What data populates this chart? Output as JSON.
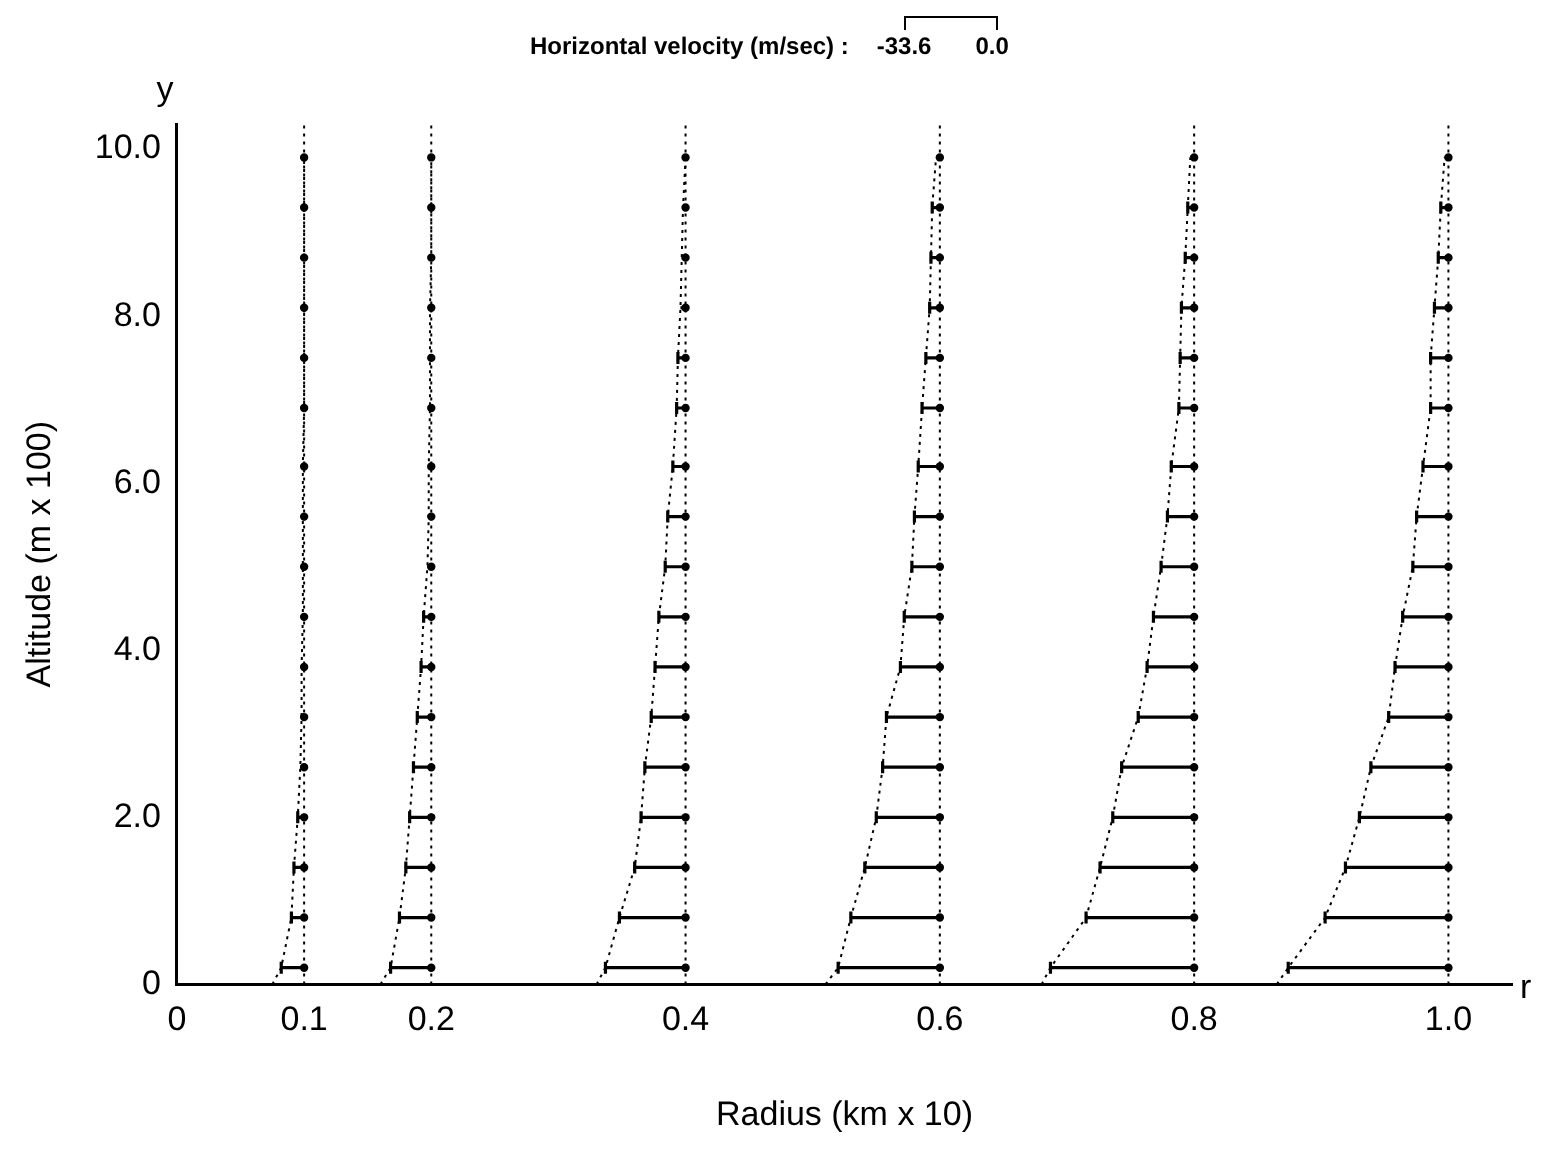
{
  "chart_data": {
    "type": "scatter",
    "xlabel": "Radius (km x 10)",
    "ylabel": "Altitude (m x 100)",
    "annotations": [
      "Horizontal velocity (m/sec) :",
      "-33.6",
      "0.0",
      "y",
      "r"
    ],
    "xlim": [
      0,
      1.05
    ],
    "ylim": [
      0,
      10.3
    ],
    "xticks": [
      0,
      0.1,
      0.2,
      0.4,
      0.6,
      0.8,
      {
        "value": 1,
        "label": "1.0"
      }
    ],
    "yticks": [
      0,
      {
        "value": 2,
        "label": "2.0"
      },
      {
        "value": 4,
        "label": "4.0"
      },
      {
        "value": 6,
        "label": "6.0"
      },
      {
        "value": 8,
        "label": "8.0"
      },
      {
        "value": 10,
        "label": "10.0"
      }
    ],
    "legend": false,
    "marker": "circle",
    "ref_lines": [
      {
        "axis": "x",
        "value": 0.1,
        "color": "#000000",
        "line_style": "dotted"
      },
      {
        "axis": "x",
        "value": 0.2,
        "color": "#000000",
        "line_style": "dotted"
      },
      {
        "axis": "x",
        "value": 0.4,
        "color": "#000000",
        "line_style": "dotted"
      },
      {
        "axis": "x",
        "value": 0.6,
        "color": "#000000",
        "line_style": "dotted"
      },
      {
        "axis": "x",
        "value": 0.8,
        "color": "#000000",
        "line_style": "dotted"
      },
      {
        "axis": "x",
        "value": 1.0,
        "color": "#000000",
        "line_style": "dotted"
      }
    ],
    "series": [
      {
        "type": "scatter",
        "color": "#000000",
        "x": [
          0.1,
          0.1,
          0.1,
          0.1,
          0.1,
          0.1,
          0.1,
          0.1,
          0.1,
          0.1,
          0.1,
          0.1,
          0.1,
          0.1,
          0.1,
          0.1,
          0.1
        ],
        "values": [
          0.2,
          0.8,
          1.4,
          2.0,
          2.6,
          3.2,
          3.8,
          4.4,
          5.0,
          5.6,
          6.2,
          6.9,
          7.5,
          8.1,
          8.7,
          9.3,
          9.9
        ],
        "xerrors": [
          [
            0.082,
            0.1
          ],
          [
            0.09,
            0.1
          ],
          [
            0.092,
            0.1
          ],
          [
            0.095,
            0.1
          ],
          [
            0.097,
            0.1
          ],
          null,
          null,
          null,
          null,
          null,
          null,
          null,
          null,
          null,
          null,
          null,
          null
        ]
      },
      {
        "type": "line",
        "color": "#000000",
        "marker": "none",
        "line_style": "dotted",
        "x": [
          0.075,
          0.082,
          0.09,
          0.092,
          0.095,
          0.097,
          0.098,
          0.098,
          0.099,
          0.099,
          0.099,
          0.099,
          0.1,
          0.1,
          0.1,
          0.1,
          0.1,
          0.1
        ],
        "values": [
          0,
          0.2,
          0.8,
          1.4,
          2.0,
          2.6,
          3.2,
          3.8,
          4.4,
          5.0,
          5.6,
          6.2,
          6.9,
          7.5,
          8.1,
          8.7,
          9.3,
          9.9
        ]
      },
      {
        "type": "scatter",
        "color": "#000000",
        "x": [
          0.2,
          0.2,
          0.2,
          0.2,
          0.2,
          0.2,
          0.2,
          0.2,
          0.2,
          0.2,
          0.2,
          0.2,
          0.2,
          0.2,
          0.2,
          0.2,
          0.2
        ],
        "values": [
          0.2,
          0.8,
          1.4,
          2.0,
          2.6,
          3.2,
          3.8,
          4.4,
          5.0,
          5.6,
          6.2,
          6.9,
          7.5,
          8.1,
          8.7,
          9.3,
          9.9
        ],
        "xerrors": [
          [
            0.168,
            0.2
          ],
          [
            0.175,
            0.2
          ],
          [
            0.18,
            0.2
          ],
          [
            0.183,
            0.2
          ],
          [
            0.186,
            0.2
          ],
          [
            0.189,
            0.2
          ],
          [
            0.192,
            0.2
          ],
          [
            0.194,
            0.2
          ],
          [
            0.197,
            0.2
          ],
          null,
          null,
          null,
          null,
          null,
          null,
          null,
          null
        ]
      },
      {
        "type": "line",
        "color": "#000000",
        "marker": "none",
        "line_style": "dotted",
        "x": [
          0.16,
          0.168,
          0.175,
          0.18,
          0.183,
          0.186,
          0.189,
          0.192,
          0.194,
          0.197,
          0.198,
          0.198,
          0.199,
          0.199,
          0.199,
          0.2,
          0.2,
          0.2
        ],
        "values": [
          0,
          0.2,
          0.8,
          1.4,
          2.0,
          2.6,
          3.2,
          3.8,
          4.4,
          5.0,
          5.6,
          6.2,
          6.9,
          7.5,
          8.1,
          8.7,
          9.3,
          9.9
        ]
      },
      {
        "type": "scatter",
        "color": "#000000",
        "x": [
          0.4,
          0.4,
          0.4,
          0.4,
          0.4,
          0.4,
          0.4,
          0.4,
          0.4,
          0.4,
          0.4,
          0.4,
          0.4,
          0.4,
          0.4,
          0.4,
          0.4
        ],
        "values": [
          0.2,
          0.8,
          1.4,
          2.0,
          2.6,
          3.2,
          3.8,
          4.4,
          5.0,
          5.6,
          6.2,
          6.9,
          7.5,
          8.1,
          8.7,
          9.3,
          9.9
        ],
        "xerrors": [
          [
            0.337,
            0.4
          ],
          [
            0.348,
            0.4
          ],
          [
            0.36,
            0.4
          ],
          [
            0.365,
            0.4
          ],
          [
            0.368,
            0.4
          ],
          [
            0.373,
            0.4
          ],
          [
            0.376,
            0.4
          ],
          [
            0.379,
            0.4
          ],
          [
            0.384,
            0.4
          ],
          [
            0.386,
            0.4
          ],
          [
            0.39,
            0.4
          ],
          [
            0.393,
            0.4
          ],
          [
            0.394,
            0.4
          ],
          [
            0.396,
            0.4
          ],
          [
            0.397,
            0.4
          ],
          [
            0.398,
            0.4
          ],
          [
            0.4,
            0.4
          ]
        ]
      },
      {
        "type": "line",
        "color": "#000000",
        "marker": "none",
        "line_style": "dotted",
        "x": [
          0.33,
          0.337,
          0.348,
          0.36,
          0.365,
          0.368,
          0.373,
          0.376,
          0.379,
          0.384,
          0.386,
          0.39,
          0.393,
          0.394,
          0.396,
          0.397,
          0.398,
          0.4
        ],
        "values": [
          0,
          0.2,
          0.8,
          1.4,
          2.0,
          2.6,
          3.2,
          3.8,
          4.4,
          5.0,
          5.6,
          6.2,
          6.9,
          7.5,
          8.1,
          8.7,
          9.3,
          9.9
        ]
      },
      {
        "type": "scatter",
        "color": "#000000",
        "x": [
          0.6,
          0.6,
          0.6,
          0.6,
          0.6,
          0.6,
          0.6,
          0.6,
          0.6,
          0.6,
          0.6,
          0.6,
          0.6,
          0.6,
          0.6,
          0.6,
          0.6
        ],
        "values": [
          0.2,
          0.8,
          1.4,
          2.0,
          2.6,
          3.2,
          3.8,
          4.4,
          5.0,
          5.6,
          6.2,
          6.9,
          7.5,
          8.1,
          8.7,
          9.3,
          9.9
        ],
        "xerrors": [
          [
            0.52,
            0.6
          ],
          [
            0.53,
            0.6
          ],
          [
            0.541,
            0.6
          ],
          [
            0.55,
            0.6
          ],
          [
            0.555,
            0.6
          ],
          [
            0.558,
            0.6
          ],
          [
            0.569,
            0.6
          ],
          [
            0.572,
            0.6
          ],
          [
            0.578,
            0.6
          ],
          [
            0.58,
            0.6
          ],
          [
            0.583,
            0.6
          ],
          [
            0.586,
            0.6
          ],
          [
            0.589,
            0.6
          ],
          [
            0.592,
            0.6
          ],
          [
            0.593,
            0.6
          ],
          [
            0.594,
            0.6
          ],
          [
            0.597,
            0.6
          ]
        ]
      },
      {
        "type": "line",
        "color": "#000000",
        "marker": "none",
        "line_style": "dotted",
        "x": [
          0.51,
          0.52,
          0.53,
          0.541,
          0.55,
          0.555,
          0.558,
          0.569,
          0.572,
          0.578,
          0.58,
          0.583,
          0.586,
          0.589,
          0.592,
          0.593,
          0.594,
          0.597
        ],
        "values": [
          0,
          0.2,
          0.8,
          1.4,
          2.0,
          2.6,
          3.2,
          3.8,
          4.4,
          5.0,
          5.6,
          6.2,
          6.9,
          7.5,
          8.1,
          8.7,
          9.3,
          9.9
        ]
      },
      {
        "type": "scatter",
        "color": "#000000",
        "x": [
          0.8,
          0.8,
          0.8,
          0.8,
          0.8,
          0.8,
          0.8,
          0.8,
          0.8,
          0.8,
          0.8,
          0.8,
          0.8,
          0.8,
          0.8,
          0.8,
          0.8
        ],
        "values": [
          0.2,
          0.8,
          1.4,
          2.0,
          2.6,
          3.2,
          3.8,
          4.4,
          5.0,
          5.6,
          6.2,
          6.9,
          7.5,
          8.1,
          8.7,
          9.3,
          9.9
        ],
        "xerrors": [
          [
            0.687,
            0.8
          ],
          [
            0.715,
            0.8
          ],
          [
            0.726,
            0.8
          ],
          [
            0.736,
            0.8
          ],
          [
            0.743,
            0.8
          ],
          [
            0.756,
            0.8
          ],
          [
            0.763,
            0.8
          ],
          [
            0.768,
            0.8
          ],
          [
            0.774,
            0.8
          ],
          [
            0.779,
            0.8
          ],
          [
            0.782,
            0.8
          ],
          [
            0.788,
            0.8
          ],
          [
            0.789,
            0.8
          ],
          [
            0.79,
            0.8
          ],
          [
            0.793,
            0.8
          ],
          [
            0.795,
            0.8
          ],
          [
            0.797,
            0.8
          ]
        ]
      },
      {
        "type": "line",
        "color": "#000000",
        "marker": "none",
        "line_style": "dotted",
        "x": [
          0.68,
          0.687,
          0.715,
          0.726,
          0.736,
          0.743,
          0.756,
          0.763,
          0.768,
          0.774,
          0.779,
          0.782,
          0.788,
          0.789,
          0.79,
          0.793,
          0.795,
          0.797
        ],
        "values": [
          0,
          0.2,
          0.8,
          1.4,
          2.0,
          2.6,
          3.2,
          3.8,
          4.4,
          5.0,
          5.6,
          6.2,
          6.9,
          7.5,
          8.1,
          8.7,
          9.3,
          9.9
        ]
      },
      {
        "type": "scatter",
        "color": "#000000",
        "x": [
          1.0,
          1.0,
          1.0,
          1.0,
          1.0,
          1.0,
          1.0,
          1.0,
          1.0,
          1.0,
          1.0,
          1.0,
          1.0,
          1.0,
          1.0,
          1.0,
          1.0
        ],
        "values": [
          0.2,
          0.8,
          1.4,
          2.0,
          2.6,
          3.2,
          3.8,
          4.4,
          5.0,
          5.6,
          6.2,
          6.9,
          7.5,
          8.1,
          8.7,
          9.3,
          9.9
        ],
        "xerrors": [
          [
            0.874,
            1.0
          ],
          [
            0.903,
            1.0
          ],
          [
            0.919,
            1.0
          ],
          [
            0.93,
            1.0
          ],
          [
            0.939,
            1.0
          ],
          [
            0.953,
            1.0
          ],
          [
            0.958,
            1.0
          ],
          [
            0.964,
            1.0
          ],
          [
            0.972,
            1.0
          ],
          [
            0.975,
            1.0
          ],
          [
            0.98,
            1.0
          ],
          [
            0.986,
            1.0
          ],
          [
            0.986,
            1.0
          ],
          [
            0.989,
            1.0
          ],
          [
            0.992,
            1.0
          ],
          [
            0.994,
            1.0
          ],
          [
            0.997,
            1.0
          ]
        ]
      },
      {
        "type": "line",
        "color": "#000000",
        "marker": "none",
        "line_style": "dotted",
        "x": [
          0.865,
          0.874,
          0.903,
          0.919,
          0.93,
          0.939,
          0.953,
          0.958,
          0.964,
          0.972,
          0.975,
          0.98,
          0.986,
          0.986,
          0.989,
          0.992,
          0.994,
          0.997
        ],
        "values": [
          0,
          0.2,
          0.8,
          1.4,
          2.0,
          2.6,
          3.2,
          3.8,
          4.4,
          5.0,
          5.6,
          6.2,
          6.9,
          7.5,
          8.1,
          8.7,
          9.3,
          9.9
        ]
      }
    ]
  }
}
